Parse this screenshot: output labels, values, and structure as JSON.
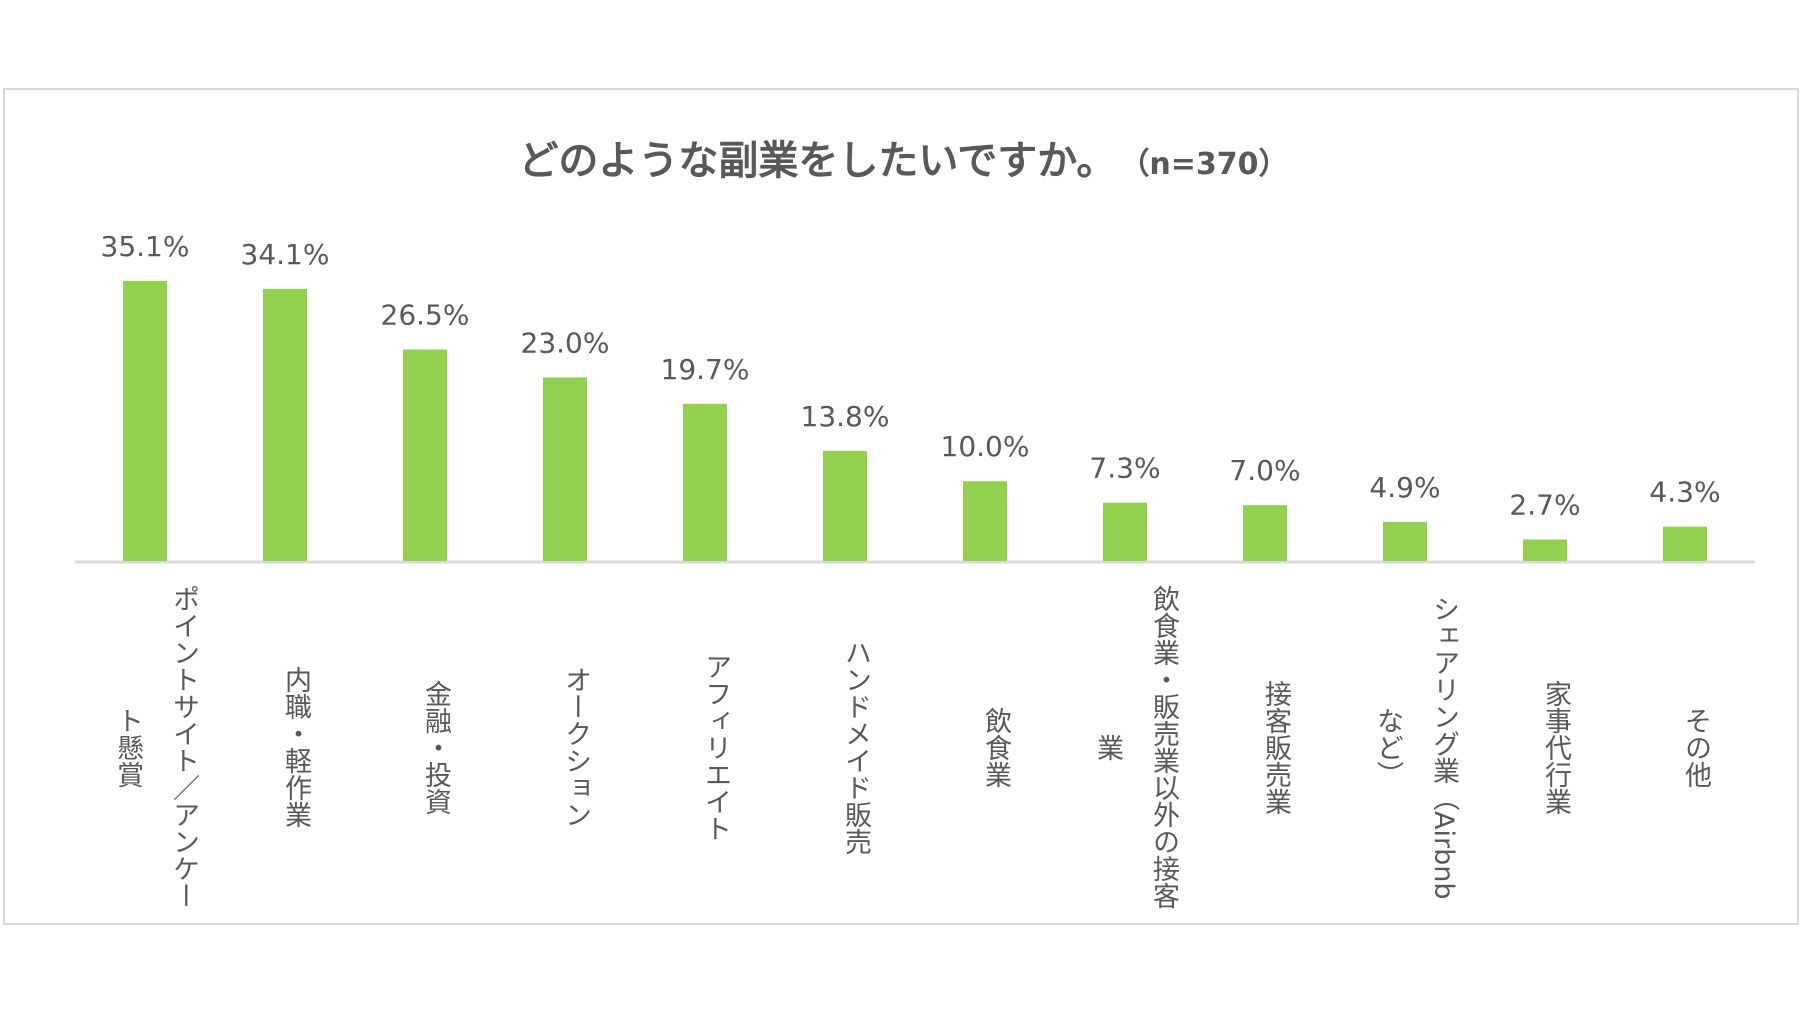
{
  "chart_data": {
    "type": "bar",
    "title": "どのような副業をしたいですか。",
    "subtitle": "（n=370）",
    "categories": [
      "ポイントサイト／アンケート懸賞",
      "内職・軽作業",
      "金融・投資",
      "オークション",
      "アフィリエイト",
      "ハンドメイド販売",
      "飲食業",
      "飲食業・販売業以外の接客業",
      "接客販売業",
      "シェアリング業（Airbnbなど）",
      "家事代行業",
      "その他"
    ],
    "values": [
      35.1,
      34.1,
      26.5,
      23.0,
      19.7,
      13.8,
      10.0,
      7.3,
      7.0,
      4.9,
      2.7,
      4.3
    ],
    "data_labels": [
      "35.1%",
      "34.1%",
      "26.5%",
      "23.0%",
      "19.7%",
      "13.8%",
      "10.0%",
      "7.3%",
      "7.0%",
      "4.9%",
      "2.7%",
      "4.3%"
    ],
    "xlabel": "",
    "ylabel": "",
    "ylim": [
      0,
      40
    ],
    "grid": false,
    "legend": "none",
    "colors": {
      "bar": "#92D050",
      "text": "#595959",
      "axis": "#d9d9d9"
    }
  }
}
